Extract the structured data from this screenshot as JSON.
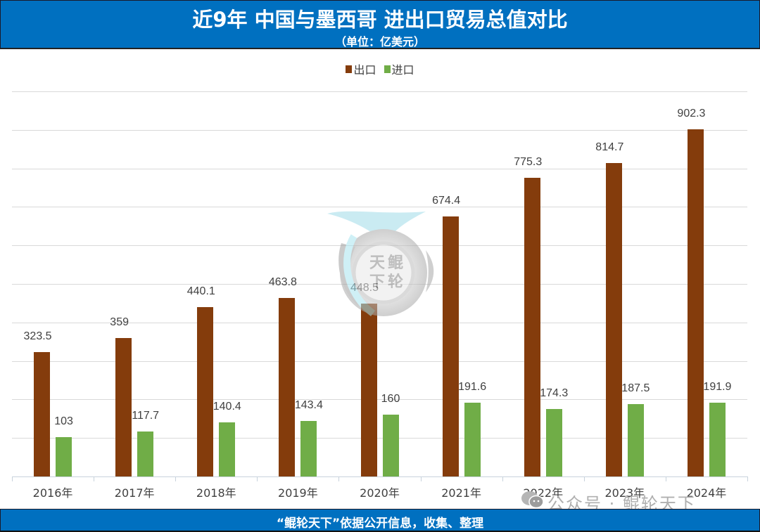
{
  "header": {
    "title": "近9年 中国与墨西哥 进出口贸易总值对比",
    "subtitle": "（单位：亿美元）"
  },
  "legend": [
    {
      "label": "出口",
      "color": "#843c0c"
    },
    {
      "label": "进口",
      "color": "#70ad47"
    }
  ],
  "footer": {
    "text": "“鲲轮天下”依据公开信息，收集、整理"
  },
  "watermark": {
    "seal_text": "天鲲下轮",
    "wechat_label": "公众号 · 鲲轮天下"
  },
  "colors": {
    "header_bg": "#0070c0",
    "export": "#843c0c",
    "import": "#70ad47",
    "grid": "#d9d9d9"
  },
  "chart_data": {
    "type": "bar",
    "title": "近9年 中国与墨西哥 进出口贸易总值对比",
    "subtitle": "（单位：亿美元）",
    "xlabel": "",
    "ylabel": "亿美元",
    "ylim": [
      0,
      1000
    ],
    "grid": true,
    "y_axis_visible": false,
    "legend_position": "top",
    "categories": [
      "2016年",
      "2017年",
      "2018年",
      "2019年",
      "2020年",
      "2021年",
      "2022年",
      "2023年",
      "2024年"
    ],
    "series": [
      {
        "name": "出口",
        "color": "#843c0c",
        "values": [
          323.5,
          359,
          440.1,
          463.8,
          448.5,
          674.4,
          775.3,
          814.7,
          902.3
        ],
        "labels": [
          "323.5",
          "359",
          "440.1",
          "463.8",
          "448.5",
          "674.4",
          "775.3",
          "814.7",
          "902.3"
        ]
      },
      {
        "name": "进口",
        "color": "#70ad47",
        "values": [
          103,
          117.7,
          140.4,
          143.4,
          160,
          191.6,
          174.3,
          187.5,
          191.9
        ],
        "labels": [
          "103",
          "117.7",
          "140.4",
          "143.4",
          "160",
          "191.6",
          "174.3",
          "187.5",
          "191.9"
        ]
      }
    ]
  }
}
